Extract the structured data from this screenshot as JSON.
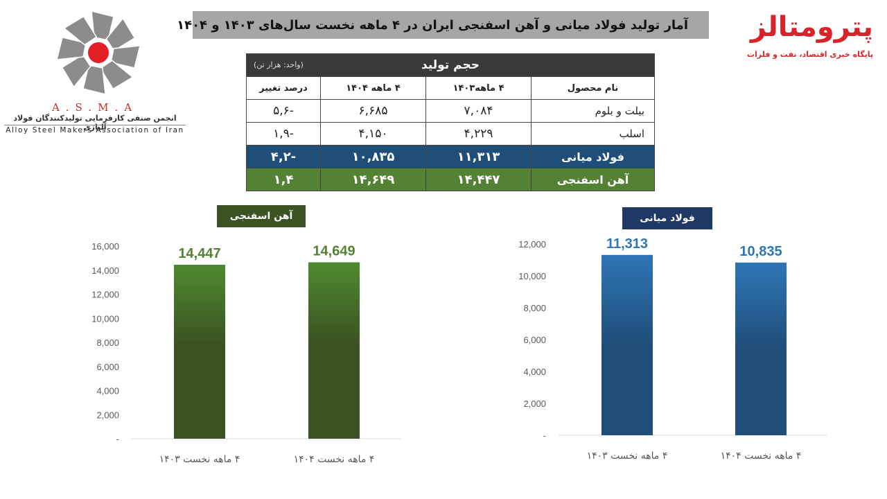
{
  "title": "آمار تولید فولاد میانی و آهن اسفنجی ایران در ۴ ماهه نخست سال‌های ۱۴۰۳ و ۱۴۰۴",
  "brand": {
    "name": "پترومتالز",
    "tagline": "پایگاه خبری اقتصاد، نفت و فلزات",
    "color": "#d8232a"
  },
  "logo": {
    "abbr": "A.S.M.A",
    "name_fa": "انجمن صنفی کارفرمایی تولیدکنندگان فولاد آلیاژی",
    "name_en": "Alloy Steel Makers Association of Iran"
  },
  "table": {
    "header": "حجم تولید",
    "unit": "(واحد: هزار تن)",
    "columns": [
      "نام محصول",
      "۴ ماهه۱۴۰۳",
      "۴ ماهه ۱۴۰۴",
      "درصد تغییر"
    ],
    "rows": [
      {
        "name": "بیلت و بلوم",
        "v1403": "۷,۰۸۴",
        "v1404": "۶,۶۸۵",
        "change": "-۵,۶",
        "style": "plain"
      },
      {
        "name": "اسلب",
        "v1403": "۴,۲۲۹",
        "v1404": "۴,۱۵۰",
        "change": "-۱,۹",
        "style": "plain"
      },
      {
        "name": "فولاد میانی",
        "v1403": "۱۱,۳۱۳",
        "v1404": "۱۰,۸۳۵",
        "change": "-۴,۲",
        "style": "blue"
      },
      {
        "name": "آهن اسفنجی",
        "v1403": "۱۴,۴۴۷",
        "v1404": "۱۴,۶۴۹",
        "change": "۱,۴",
        "style": "green"
      }
    ]
  },
  "chart_labels": {
    "left": "آهن اسفنجی",
    "right": "فولاد میانی"
  },
  "chart_data": [
    {
      "type": "bar",
      "title": "آهن اسفنجی",
      "categories": [
        "۴ ماهه نخست ۱۴۰۳",
        "۴ ماهه نخست ۱۴۰۴"
      ],
      "values": [
        14447,
        14649
      ],
      "value_labels": [
        "14,447",
        "14,649"
      ],
      "ylim": [
        0,
        16000
      ],
      "yticks": [
        0,
        2000,
        4000,
        6000,
        8000,
        10000,
        12000,
        14000,
        16000
      ],
      "ytick_labels": [
        "-",
        "2,000",
        "4,000",
        "6,000",
        "8,000",
        "10,000",
        "12,000",
        "14,000",
        "16,000"
      ],
      "bar_color": "#3b5323",
      "label_color": "#548235",
      "grid": false
    },
    {
      "type": "bar",
      "title": "فولاد میانی",
      "categories": [
        "۴ ماهه نخست ۱۴۰۳",
        "۴ ماهه نخست ۱۴۰۴"
      ],
      "values": [
        11313,
        10835
      ],
      "value_labels": [
        "11,313",
        "10,835"
      ],
      "ylim": [
        0,
        12000
      ],
      "yticks": [
        0,
        2000,
        4000,
        6000,
        8000,
        10000,
        12000
      ],
      "ytick_labels": [
        "-",
        "2,000",
        "4,000",
        "6,000",
        "8,000",
        "10,000",
        "12,000"
      ],
      "bar_color": "#1f4e79",
      "label_color": "#2e75b6",
      "grid": false
    }
  ]
}
